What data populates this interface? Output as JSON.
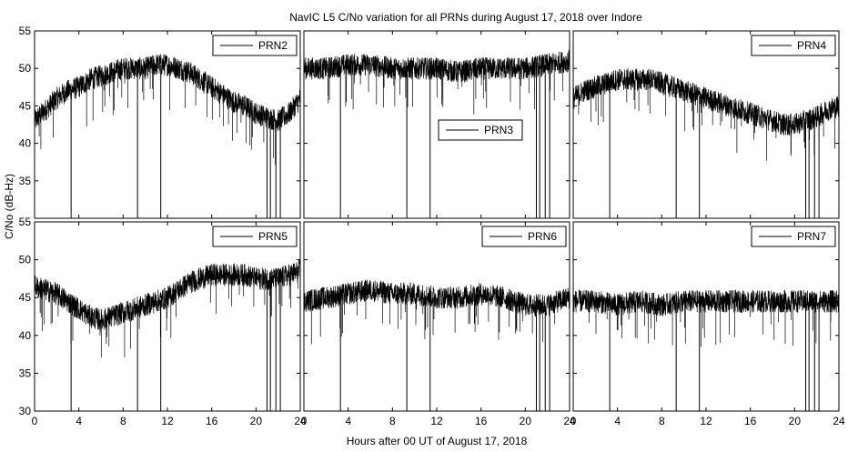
{
  "figure": {
    "title": "NavIC L5 C/No variation for all PRNs during August 17, 2018 over Indore",
    "xlabel": "Hours after 00 UT of August 17, 2018",
    "ylabel": "C/No (dB-Hz)"
  },
  "chart_data": [
    {
      "type": "line",
      "name": "PRN2",
      "legend_position": "top-right",
      "xlim": [
        0,
        24
      ],
      "ylim": [
        30,
        55
      ],
      "x": [
        0,
        1,
        2,
        3,
        4,
        5,
        6,
        7,
        8,
        9,
        10,
        11,
        12,
        13,
        14,
        15,
        16,
        17,
        18,
        19,
        20,
        21,
        22,
        23,
        24
      ],
      "y": [
        43,
        44.5,
        46,
        47,
        47.5,
        48.5,
        49,
        49.5,
        50,
        50,
        50,
        50.5,
        50.5,
        50,
        49.5,
        48.5,
        47.5,
        46.5,
        45.5,
        45,
        44,
        43.5,
        43,
        44,
        46
      ],
      "dropouts": [
        3.3,
        9.3,
        11.4,
        21,
        21.3,
        21.8,
        22.2
      ],
      "dropouts_to": [
        30,
        30,
        30,
        30,
        30,
        30,
        30
      ]
    },
    {
      "type": "line",
      "name": "PRN3",
      "legend_position": "center-right",
      "xlim": [
        0,
        24
      ],
      "ylim": [
        30,
        55
      ],
      "x": [
        0,
        2,
        4,
        6,
        8,
        10,
        12,
        14,
        16,
        18,
        20,
        22,
        24
      ],
      "y": [
        50,
        50,
        50.5,
        50.5,
        50,
        50,
        50,
        49.5,
        50,
        50,
        50,
        50.5,
        51
      ],
      "dropouts": [
        3.3,
        9.3,
        11.4,
        21,
        21.3,
        21.8,
        22.2
      ],
      "dropouts_to": [
        30,
        30,
        30,
        30,
        30,
        30,
        30
      ]
    },
    {
      "type": "line",
      "name": "PRN4",
      "legend_position": "top-right",
      "xlim": [
        0,
        24
      ],
      "ylim": [
        30,
        55
      ],
      "x": [
        0,
        1,
        2,
        3,
        4,
        5,
        6,
        7,
        8,
        9,
        10,
        11,
        12,
        13,
        14,
        15,
        16,
        17,
        18,
        19,
        20,
        21,
        22,
        23,
        24
      ],
      "y": [
        46,
        47,
        47.5,
        48,
        48.5,
        48.5,
        48.5,
        48.5,
        48,
        47.5,
        47,
        46.5,
        46,
        45.5,
        45,
        44.5,
        44,
        43.5,
        43,
        42.5,
        42.5,
        43,
        43.5,
        44.5,
        45
      ],
      "dropouts": [
        3.3,
        9.3,
        11.4,
        21,
        21.3,
        21.8,
        22.2
      ],
      "dropouts_to": [
        30,
        30,
        30,
        30,
        30,
        30,
        30
      ]
    },
    {
      "type": "line",
      "name": "PRN5",
      "legend_position": "top-right",
      "xlim": [
        0,
        24
      ],
      "ylim": [
        30,
        55
      ],
      "x": [
        0,
        1,
        2,
        3,
        4,
        5,
        6,
        7,
        8,
        9,
        10,
        11,
        12,
        13,
        14,
        15,
        16,
        17,
        18,
        19,
        20,
        21,
        22,
        23,
        24
      ],
      "y": [
        46.5,
        46,
        45.5,
        44.5,
        43.5,
        42.5,
        42,
        42.5,
        43,
        43.5,
        44,
        44.5,
        45,
        46,
        47,
        47.5,
        48,
        48,
        48,
        48,
        47.5,
        47.5,
        47.5,
        48,
        48.5
      ],
      "dropouts": [
        3.3,
        9.3,
        11.4,
        21,
        21.3,
        21.8,
        22.2
      ],
      "dropouts_to": [
        30,
        30,
        30,
        30,
        30,
        30,
        30
      ]
    },
    {
      "type": "line",
      "name": "PRN6",
      "legend_position": "top-right",
      "xlim": [
        0,
        24
      ],
      "ylim": [
        30,
        55
      ],
      "x": [
        0,
        2,
        4,
        6,
        8,
        10,
        12,
        14,
        16,
        18,
        20,
        22,
        24
      ],
      "y": [
        44.5,
        45,
        45.5,
        46,
        45.5,
        45.5,
        45,
        45,
        45.5,
        45,
        44,
        44,
        45
      ],
      "dropouts": [
        3.3,
        9.3,
        11.4,
        21,
        21.3,
        21.8,
        22.2
      ],
      "dropouts_to": [
        30,
        30,
        30,
        30,
        30,
        30,
        30
      ]
    },
    {
      "type": "line",
      "name": "PRN7",
      "legend_position": "top-right",
      "xlim": [
        0,
        24
      ],
      "ylim": [
        30,
        55
      ],
      "x": [
        0,
        2,
        4,
        6,
        8,
        10,
        12,
        14,
        16,
        18,
        20,
        22,
        24
      ],
      "y": [
        44.5,
        44.5,
        44,
        44.5,
        44,
        44.5,
        44.5,
        44.5,
        44.5,
        44.5,
        44.5,
        44.5,
        44.5
      ],
      "dropouts": [
        3.3,
        9.3,
        11.4,
        21,
        21.3,
        21.8,
        22.2
      ],
      "dropouts_to": [
        30,
        30,
        30,
        30,
        30,
        30,
        30
      ]
    }
  ],
  "y_ticks": [
    "30",
    "35",
    "40",
    "45",
    "50",
    "55"
  ],
  "x_ticks": [
    "0",
    "4",
    "8",
    "12",
    "16",
    "20",
    "24"
  ],
  "noise_amplitude_db": 1.5
}
